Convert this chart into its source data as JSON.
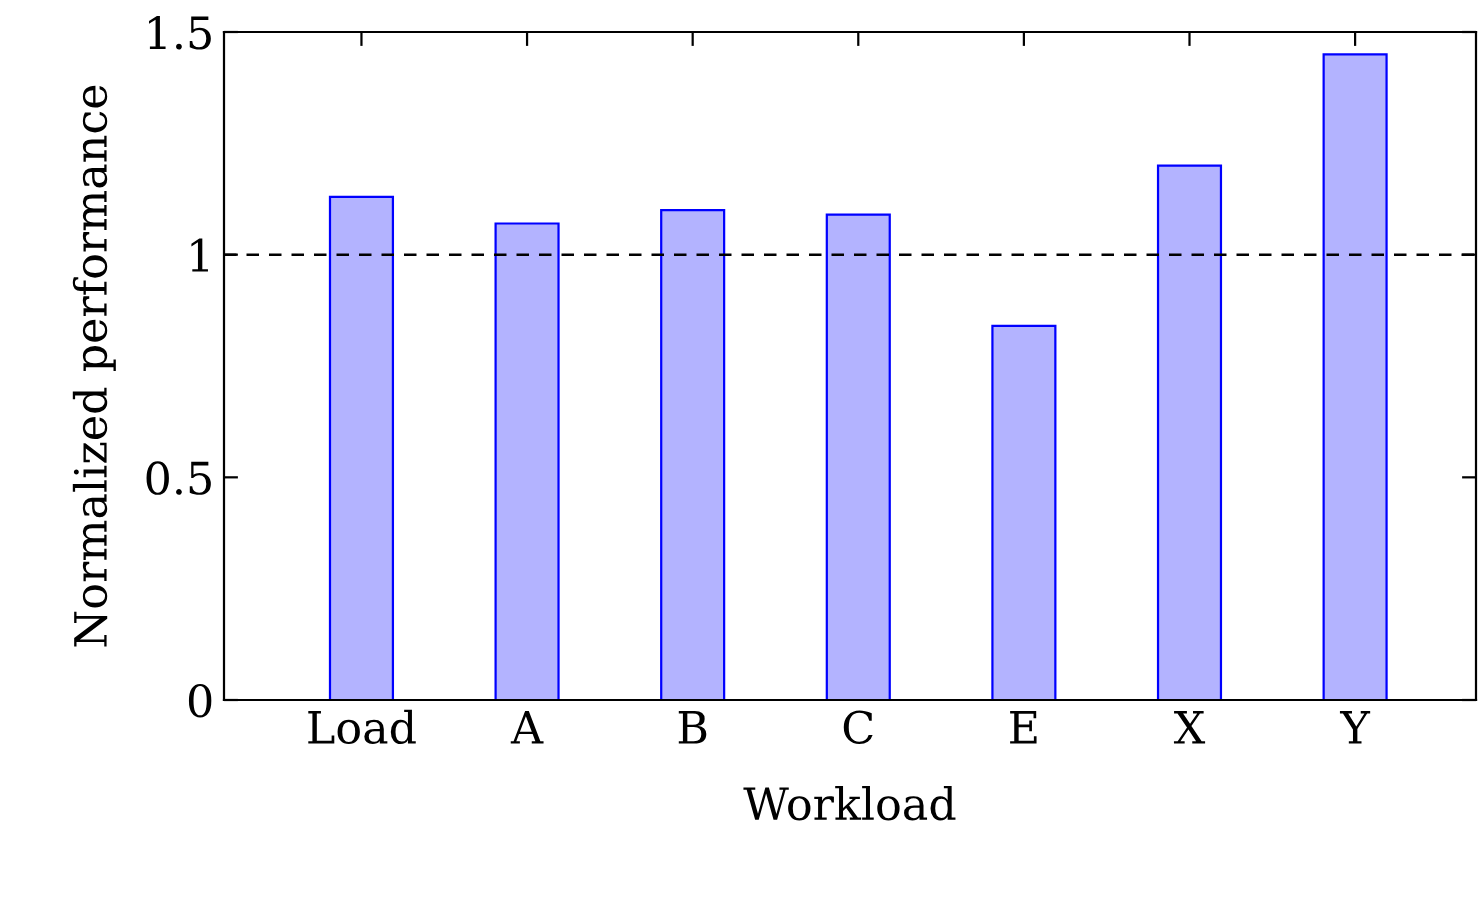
{
  "chart_data": {
    "type": "bar",
    "xlabel": "Workload",
    "ylabel": "Normalized performance",
    "categories": [
      "Load",
      "A",
      "B",
      "C",
      "E",
      "X",
      "Y"
    ],
    "values": [
      1.13,
      1.07,
      1.1,
      1.09,
      0.84,
      1.2,
      1.45
    ],
    "color": "#b3b3ff",
    "ylim": [
      0,
      1.5
    ],
    "yticks": [
      0,
      0.5,
      1,
      1.5
    ],
    "ref_lines": [
      {
        "axis": "y",
        "value": 1,
        "color": "#000000",
        "line_style": "dashed"
      }
    ],
    "grid": false,
    "legend": false
  }
}
